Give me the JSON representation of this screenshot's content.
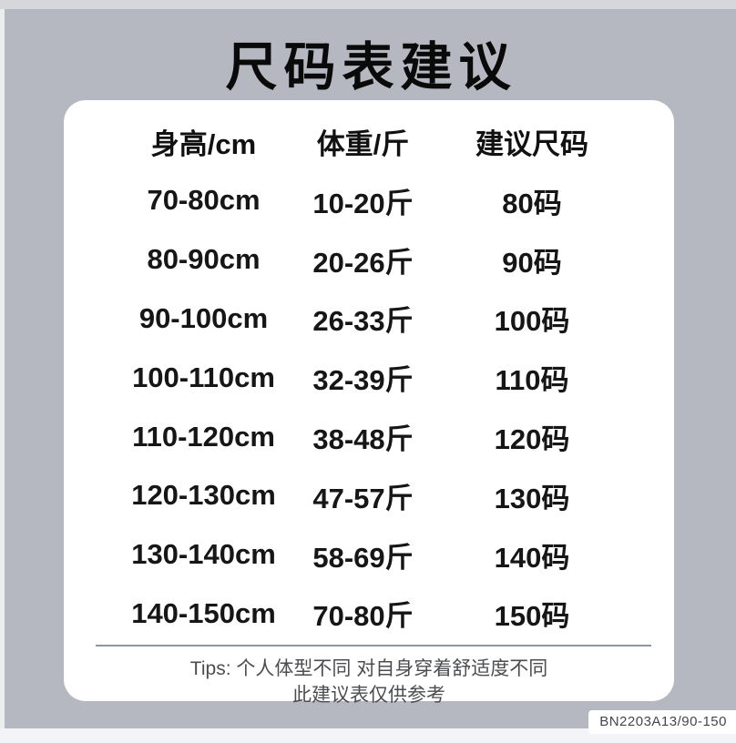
{
  "page": {
    "title": "尺码表建议",
    "product_code": "BN2203A13/90-150"
  },
  "table": {
    "headers": [
      "身高/cm",
      "体重/斤",
      "建议尺码"
    ],
    "rows": [
      [
        "70-80cm",
        "10-20斤",
        "80码"
      ],
      [
        "80-90cm",
        "20-26斤",
        "90码"
      ],
      [
        "90-100cm",
        "26-33斤",
        "100码"
      ],
      [
        "100-110cm",
        "32-39斤",
        "110码"
      ],
      [
        "110-120cm",
        "38-48斤",
        "120码"
      ],
      [
        "120-130cm",
        "47-57斤",
        "130码"
      ],
      [
        "130-140cm",
        "58-69斤",
        "140码"
      ],
      [
        "140-150cm",
        "70-80斤",
        "150码"
      ]
    ]
  },
  "tips": {
    "line1": "Tips: 个人体型不同 对自身穿着舒适度不同",
    "line2": "此建议表仅供参考"
  },
  "colors": {
    "background": "#b5b8c1",
    "card": "#ffffff",
    "title_text": "#0a0a0a",
    "table_text": "#161616",
    "tips_text": "#4b4d50",
    "divider": "#8d96a2",
    "badge_bg": "#ffffff",
    "badge_text": "#43464c",
    "edge_top": "#d6d7db",
    "edge_bottom": "#f3f4f8"
  }
}
